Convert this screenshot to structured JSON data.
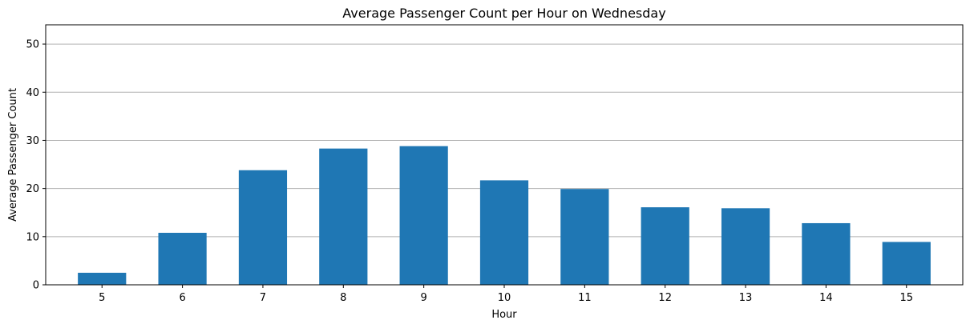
{
  "chart_data": {
    "type": "bar",
    "title": "Average Passenger Count per Hour on Wednesday",
    "xlabel": "Hour",
    "ylabel": "Average Passenger Count",
    "categories": [
      "5",
      "6",
      "7",
      "8",
      "9",
      "10",
      "11",
      "12",
      "13",
      "14",
      "15"
    ],
    "values": [
      2.5,
      10.8,
      23.8,
      28.3,
      28.8,
      21.7,
      19.9,
      16.1,
      15.9,
      12.8,
      8.9
    ],
    "ylim": [
      0,
      54
    ],
    "yticks": [
      0,
      10,
      20,
      30,
      40,
      50
    ],
    "grid": "horizontal",
    "bar_color": "#1f77b4",
    "grid_color": "#b0b0b0"
  }
}
